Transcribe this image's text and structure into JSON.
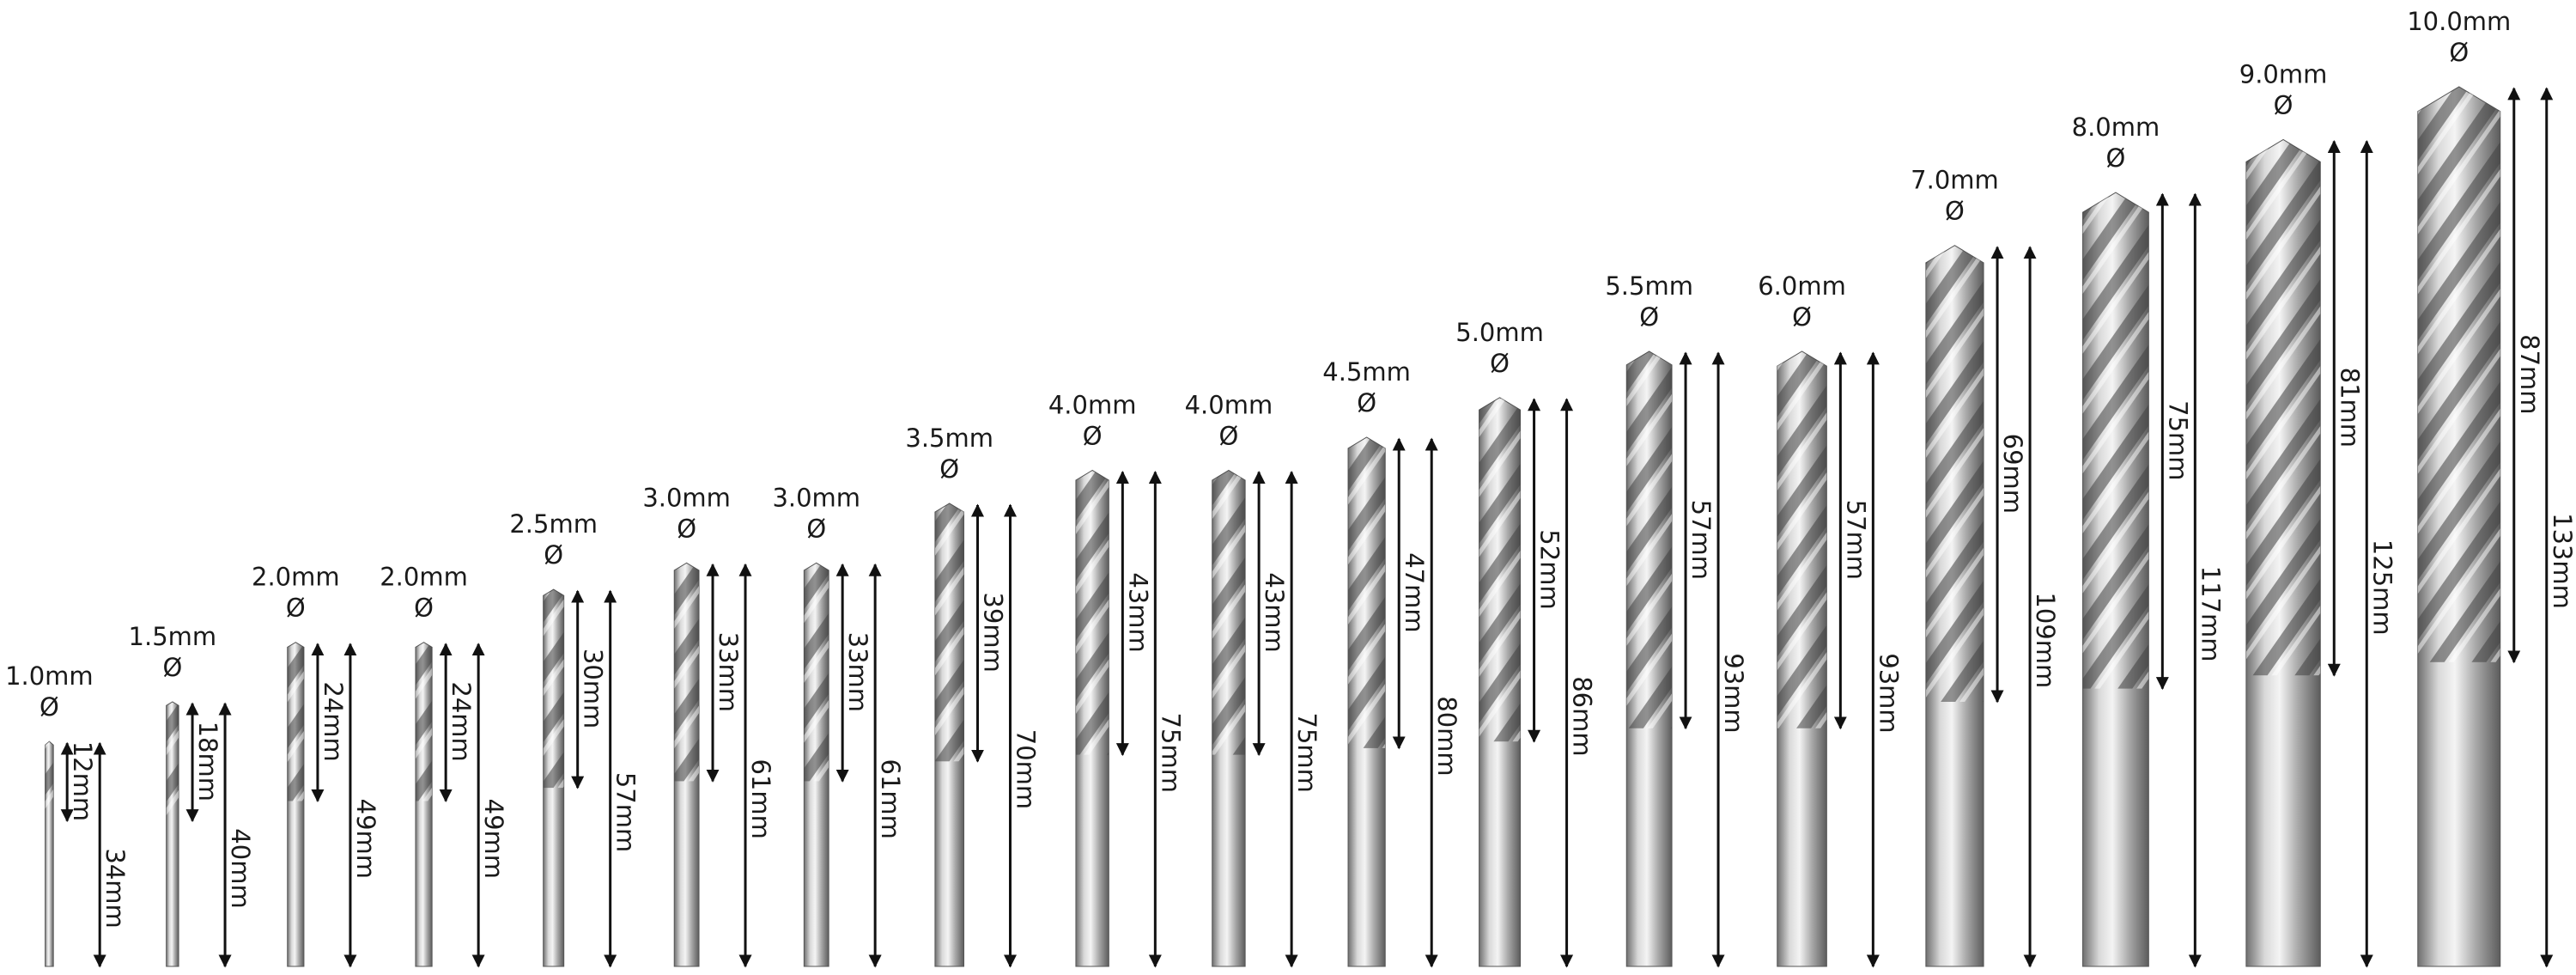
{
  "bits": [
    {
      "diameter": "1.0mm",
      "symbol": "Ø",
      "flute_length": "12mm",
      "total_length": "34mm"
    },
    {
      "diameter": "1.5mm",
      "symbol": "Ø",
      "flute_length": "18mm",
      "total_length": "40mm"
    },
    {
      "diameter": "2.0mm",
      "symbol": "Ø",
      "flute_length": "24mm",
      "total_length": "49mm"
    },
    {
      "diameter": "2.0mm",
      "symbol": "Ø",
      "flute_length": "24mm",
      "total_length": "49mm"
    },
    {
      "diameter": "2.5mm",
      "symbol": "Ø",
      "flute_length": "30mm",
      "total_length": "57mm"
    },
    {
      "diameter": "3.0mm",
      "symbol": "Ø",
      "flute_length": "33mm",
      "total_length": "61mm"
    },
    {
      "diameter": "3.0mm",
      "symbol": "Ø",
      "flute_length": "33mm",
      "total_length": "61mm"
    },
    {
      "diameter": "3.5mm",
      "symbol": "Ø",
      "flute_length": "39mm",
      "total_length": "70mm"
    },
    {
      "diameter": "4.0mm",
      "symbol": "Ø",
      "flute_length": "43mm",
      "total_length": "75mm"
    },
    {
      "diameter": "4.0mm",
      "symbol": "Ø",
      "flute_length": "43mm",
      "total_length": "75mm"
    },
    {
      "diameter": "4.5mm",
      "symbol": "Ø",
      "flute_length": "47mm",
      "total_length": "80mm"
    },
    {
      "diameter": "5.0mm",
      "symbol": "Ø",
      "flute_length": "52mm",
      "total_length": "86mm"
    },
    {
      "diameter": "5.5mm",
      "symbol": "Ø",
      "flute_length": "57mm",
      "total_length": "93mm"
    },
    {
      "diameter": "6.0mm",
      "symbol": "Ø",
      "flute_length": "57mm",
      "total_length": "93mm"
    },
    {
      "diameter": "7.0mm",
      "symbol": "Ø",
      "flute_length": "69mm",
      "total_length": "109mm"
    },
    {
      "diameter": "8.0mm",
      "symbol": "Ø",
      "flute_length": "75mm",
      "total_length": "117mm"
    },
    {
      "diameter": "9.0mm",
      "symbol": "Ø",
      "flute_length": "81mm",
      "total_length": "125mm"
    },
    {
      "diameter": "10.0mm",
      "symbol": "Ø",
      "flute_length": "87mm",
      "total_length": "133mm"
    }
  ]
}
